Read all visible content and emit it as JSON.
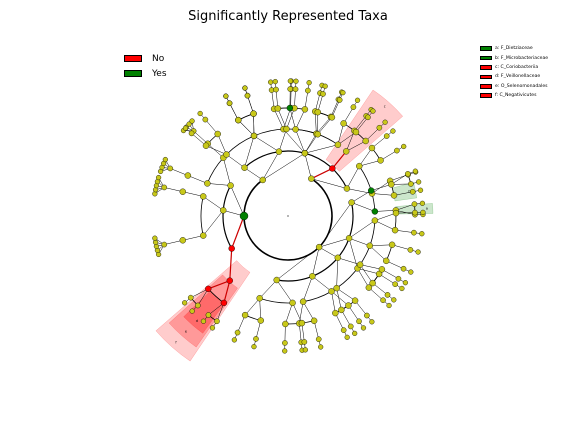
{
  "title": "Significantly Represented Taxa",
  "colors": {
    "no": "#ff0000",
    "yes": "#008000",
    "node": "#c8c819",
    "red_shade": "#ff0000",
    "green_shade": "#008000"
  },
  "legend_main": [
    {
      "label": "No",
      "color": "#ff0000"
    },
    {
      "label": "Yes",
      "color": "#008000"
    }
  ],
  "legend_taxa": [
    {
      "label": "a: F_Dietziaceae",
      "color": "#008000"
    },
    {
      "label": "b: F_Microbacteriaceae",
      "color": "#008000"
    },
    {
      "label": "c: C_Coriobacteriia",
      "color": "#ff0000"
    },
    {
      "label": "d: F_Veillonellaceae",
      "color": "#ff0000"
    },
    {
      "label": "e: O_Selenomonadales",
      "color": "#ff0000"
    },
    {
      "label": "f: C_Negativicutes",
      "color": "#ff0000"
    }
  ],
  "clade_letters": [
    "a",
    "b",
    "c",
    "d",
    "e",
    "f"
  ]
}
